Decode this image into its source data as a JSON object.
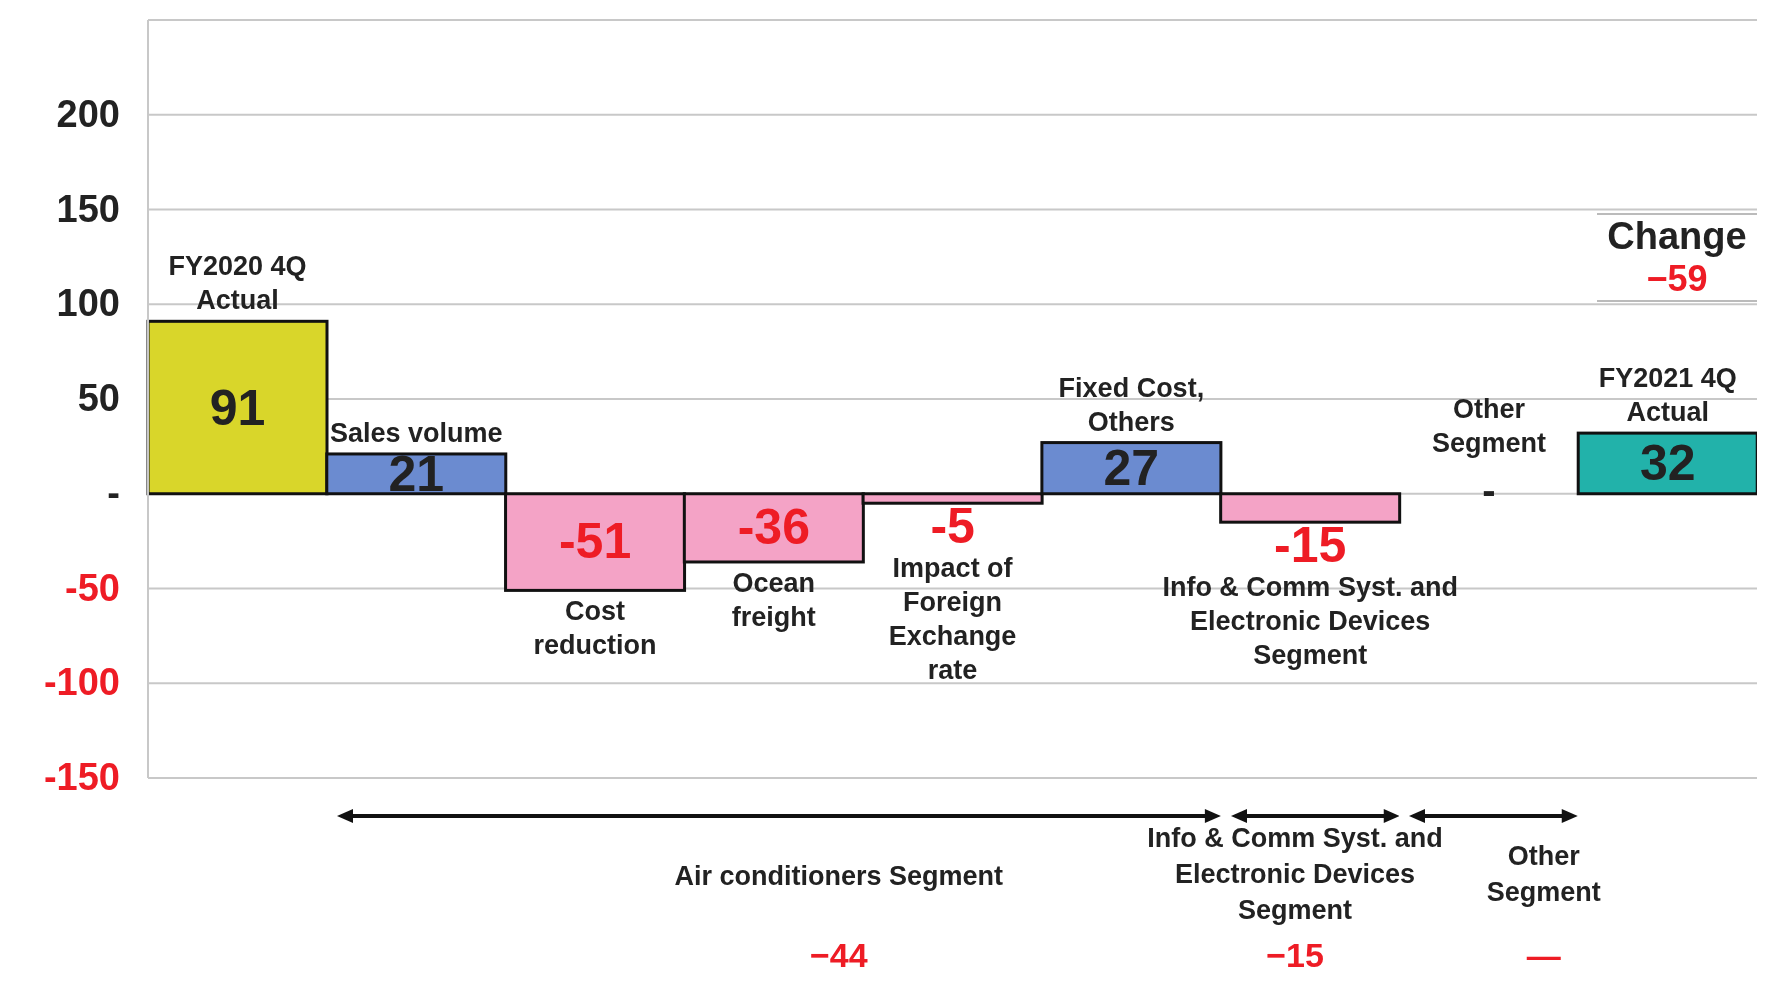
{
  "chart_data": {
    "type": "bar",
    "categories": [
      "FY2020 4Q Actual",
      "Sales volume",
      "Cost reduction",
      "Ocean freight",
      "Impact of Foreign Exchange rate",
      "Fixed Cost, Others",
      "Info & Comm Syst. and Electronic Devices Segment",
      "Other Segment",
      "FY2021 4Q Actual"
    ],
    "values": [
      91,
      21,
      -51,
      -36,
      -5,
      27,
      -15,
      0,
      32
    ],
    "value_labels": [
      "91",
      "21",
      "-51",
      "-36",
      "-5",
      "27",
      "-15",
      "-",
      "32"
    ],
    "colors": [
      "#d9d62a",
      "#6b8bd0",
      "#f4a3c6",
      "#f4a3c6",
      "#f4a3c6",
      "#6b8bd0",
      "#f4a3c6",
      "#f4a3c6",
      "#22b2aa"
    ],
    "ylim": [
      -150,
      250
    ],
    "yticks": [
      -150,
      -100,
      -50,
      {
        "value": 0,
        "label": "-"
      },
      50,
      100,
      150,
      200
    ],
    "grid": "y",
    "tick_labels": "y",
    "legend": false,
    "annotations": [
      "Change",
      "−59",
      "Air conditioners Segment",
      "−44",
      "Info & Comm Syst. and Electronic Devices Segment",
      "−15",
      "Other Segment",
      "—"
    ]
  }
}
